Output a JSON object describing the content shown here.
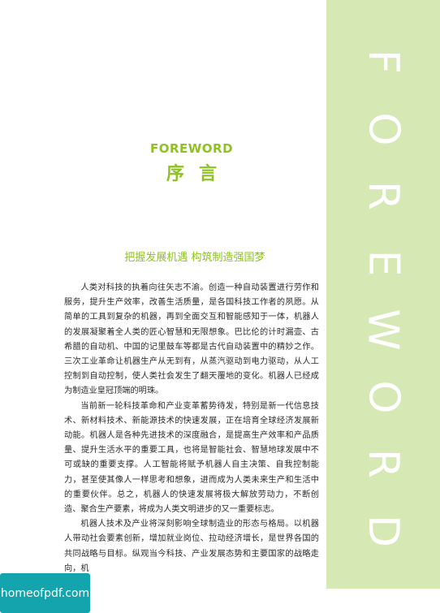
{
  "colors": {
    "accent": "#8dc21f",
    "band": "#d6e8b4",
    "watermark_bg": "#14a4ad"
  },
  "side_band": {
    "letters": [
      "F",
      "O",
      "R",
      "E",
      "W",
      "O",
      "R",
      "D"
    ]
  },
  "header": {
    "title_en": "FOREWORD",
    "title_cn": "序言"
  },
  "subtitle": "把握发展机遇 构筑制造强国梦",
  "paragraphs": [
    "人类对科技的执着向往矢志不渝。创造一种自动装置进行劳作和服务，提升生产效率，改善生活质量，是各国科技工作者的夙愿。从简单的工具到复杂的机器，再到全面交互和智能感知于一体，机器人的发展凝聚着全人类的匠心智慧和无限想象。巴比伦的计时漏壶、古希腊的自动机、中国的记里鼓车等都是古代自动装置中的精妙之作。三次工业革命让机器生产从无到有，从蒸汽驱动到电力驱动，从人工控制到自动控制，使人类社会发生了翻天覆地的变化。机器人已经成为制造业皇冠顶端的明珠。",
    "当前新一轮科技革命和产业变革蓄势待发，特别是新一代信息技术、新材料技术、新能源技术的快速发展，正在培育全球经济发展新动能。机器人是各种先进技术的深度融合，是提高生产效率和产品质量、提升生活水平的重要工具，也将是智能社会、智慧地球发展中不可或缺的重要支撑。人工智能将赋予机器人自主决策、自我控制能力，甚至使其像人一样思考和想象，进而成为人类未来生产和生活中的重要伙伴。总之，机器人的快速发展将极大解放劳动力，不断创造、聚合生产要素，将成为人类文明进步的又一重要标志。",
    "机器人技术及产业将深刻影响全球制造业的形态与格局。以机器人带动社会要素创新，增加就业岗位、拉动经济增长，是世界各国的共同战略与目标。纵观当今科技、产业发展态势和主要国家的战略走向，机"
  ],
  "watermark": {
    "label": "homeofpdf.com"
  }
}
